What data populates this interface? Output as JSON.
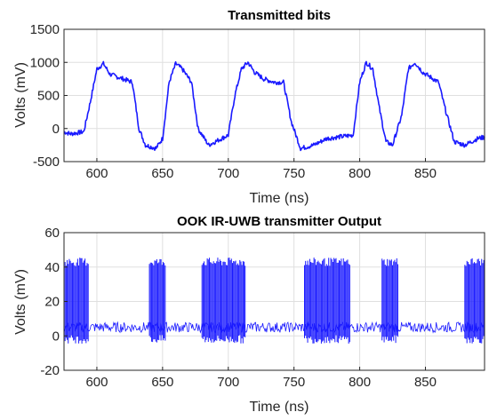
{
  "chart_data": [
    {
      "type": "line",
      "title": "Transmitted bits",
      "xlabel": "Time (ns)",
      "ylabel": "Volts (mV)",
      "xlim": [
        575,
        895
      ],
      "ylim": [
        -500,
        1500
      ],
      "xticks": [
        600,
        650,
        700,
        750,
        800,
        850
      ],
      "yticks": [
        -500,
        0,
        500,
        1000,
        1500
      ],
      "grid": true,
      "series": [
        {
          "color": "#1a1aff",
          "x": [
            575,
            580,
            590,
            595,
            600,
            605,
            610,
            620,
            627,
            632,
            637,
            645,
            650,
            655,
            660,
            665,
            672,
            677,
            685,
            700,
            705,
            710,
            715,
            720,
            727,
            735,
            742,
            748,
            755,
            765,
            775,
            795,
            800,
            805,
            810,
            815,
            820,
            825,
            832,
            837,
            842,
            848,
            860,
            865,
            872,
            880,
            885,
            890,
            895
          ],
          "values": [
            -50,
            -80,
            -50,
            400,
            900,
            980,
            820,
            750,
            700,
            0,
            -250,
            -300,
            -150,
            700,
            980,
            900,
            700,
            0,
            -250,
            -100,
            500,
            900,
            1000,
            850,
            750,
            700,
            700,
            100,
            -300,
            -250,
            -150,
            -100,
            700,
            1000,
            900,
            300,
            -200,
            -250,
            200,
            900,
            1000,
            850,
            700,
            300,
            -200,
            -250,
            -200,
            -150,
            -130
          ]
        }
      ]
    },
    {
      "type": "line",
      "title": "OOK IR-UWB transmitter Output",
      "xlabel": "Time (ns)",
      "ylabel": "Volts (mV)",
      "xlim": [
        575,
        895
      ],
      "ylim": [
        -20,
        60
      ],
      "xticks": [
        600,
        650,
        700,
        750,
        800,
        850
      ],
      "yticks": [
        -20,
        0,
        20,
        40,
        60
      ],
      "grid": true,
      "baseline": 5,
      "burst_low": -2,
      "burst_high": 43,
      "bursts": [
        [
          575,
          594
        ],
        [
          640,
          652
        ],
        [
          680,
          713
        ],
        [
          758,
          793
        ],
        [
          817,
          829
        ],
        [
          880,
          895
        ]
      ],
      "series": [
        {
          "color": "#1a1aff"
        }
      ]
    }
  ]
}
